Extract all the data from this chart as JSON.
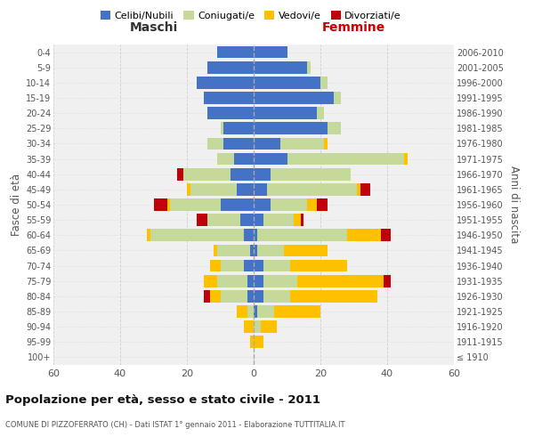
{
  "age_groups": [
    "100+",
    "95-99",
    "90-94",
    "85-89",
    "80-84",
    "75-79",
    "70-74",
    "65-69",
    "60-64",
    "55-59",
    "50-54",
    "45-49",
    "40-44",
    "35-39",
    "30-34",
    "25-29",
    "20-24",
    "15-19",
    "10-14",
    "5-9",
    "0-4"
  ],
  "birth_years": [
    "≤ 1910",
    "1911-1915",
    "1916-1920",
    "1921-1925",
    "1926-1930",
    "1931-1935",
    "1936-1940",
    "1941-1945",
    "1946-1950",
    "1951-1955",
    "1956-1960",
    "1961-1965",
    "1966-1970",
    "1971-1975",
    "1976-1980",
    "1981-1985",
    "1986-1990",
    "1991-1995",
    "1996-2000",
    "2001-2005",
    "2006-2010"
  ],
  "maschi": {
    "celibi": [
      0,
      0,
      0,
      0,
      2,
      2,
      3,
      1,
      3,
      4,
      10,
      5,
      7,
      6,
      9,
      9,
      14,
      15,
      17,
      14,
      11
    ],
    "coniugati": [
      0,
      0,
      0,
      2,
      8,
      9,
      7,
      10,
      28,
      10,
      15,
      14,
      14,
      5,
      5,
      1,
      0,
      0,
      0,
      0,
      0
    ],
    "vedovi": [
      0,
      1,
      3,
      3,
      3,
      4,
      3,
      1,
      1,
      0,
      1,
      1,
      0,
      0,
      0,
      0,
      0,
      0,
      0,
      0,
      0
    ],
    "divorziati": [
      0,
      0,
      0,
      0,
      2,
      0,
      0,
      0,
      0,
      3,
      4,
      0,
      2,
      0,
      0,
      0,
      0,
      0,
      0,
      0,
      0
    ]
  },
  "femmine": {
    "nubili": [
      0,
      0,
      0,
      1,
      3,
      3,
      3,
      1,
      1,
      3,
      5,
      4,
      5,
      10,
      8,
      22,
      19,
      24,
      20,
      16,
      10
    ],
    "coniugate": [
      0,
      0,
      2,
      5,
      8,
      10,
      8,
      8,
      27,
      9,
      11,
      27,
      24,
      35,
      13,
      4,
      2,
      2,
      2,
      1,
      0
    ],
    "vedove": [
      0,
      3,
      5,
      14,
      26,
      26,
      17,
      13,
      10,
      2,
      3,
      1,
      0,
      1,
      1,
      0,
      0,
      0,
      0,
      0,
      0
    ],
    "divorziate": [
      0,
      0,
      0,
      0,
      0,
      2,
      0,
      0,
      3,
      1,
      3,
      3,
      0,
      0,
      0,
      0,
      0,
      0,
      0,
      0,
      0
    ]
  },
  "colors": {
    "celibi": "#4472c4",
    "coniugati": "#c5d99b",
    "vedovi": "#ffc000",
    "divorziati": "#c0000b"
  },
  "xlim": 60,
  "title": "Popolazione per età, sesso e stato civile - 2011",
  "subtitle": "COMUNE DI PIZZOFERRATO (CH) - Dati ISTAT 1° gennaio 2011 - Elaborazione TUTTITALIA.IT",
  "ylabel_left": "Fasce di età",
  "ylabel_right": "Anni di nascita",
  "xlabel_left": "Maschi",
  "xlabel_right": "Femmine",
  "bg_color": "#f0f0f0",
  "grid_color": "#cccccc"
}
